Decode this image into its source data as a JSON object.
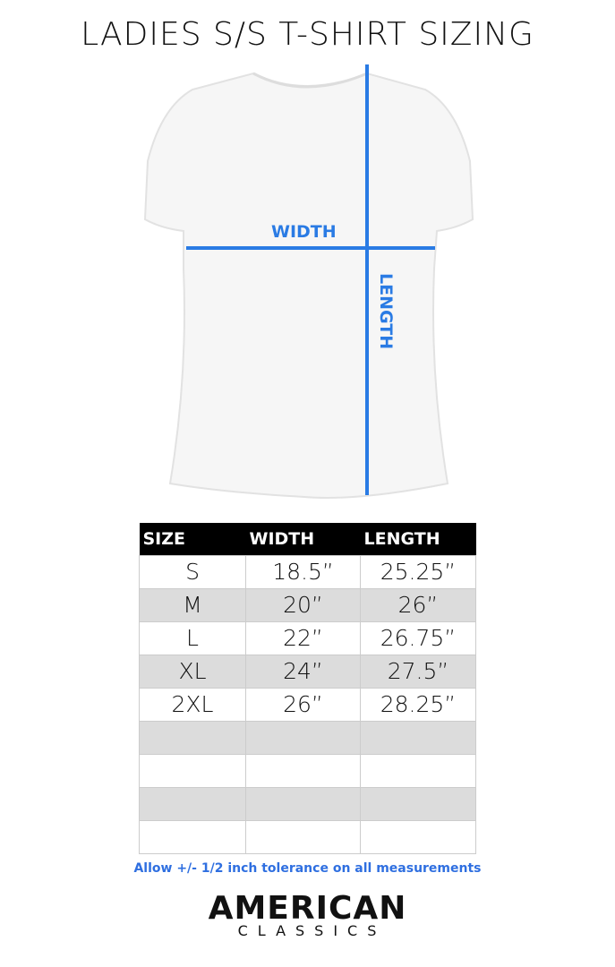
{
  "title": "LADIES S/S T-SHIRT SIZING",
  "diagram": {
    "width_label": "WIDTH",
    "length_label": "LENGTH",
    "accent_color": "#2a7be4"
  },
  "table": {
    "headers": [
      "SIZE",
      "WIDTH",
      "LENGTH"
    ],
    "rows": [
      [
        "S",
        "18.5”",
        "25.25”"
      ],
      [
        "M",
        "20”",
        "26”"
      ],
      [
        "L",
        "22”",
        "26.75”"
      ],
      [
        "XL",
        "24”",
        "27.5”"
      ],
      [
        "2XL",
        "26”",
        "28.25”"
      ],
      [
        "",
        "",
        ""
      ],
      [
        "",
        "",
        ""
      ],
      [
        "",
        "",
        ""
      ],
      [
        "",
        "",
        ""
      ]
    ]
  },
  "note": "Allow +/- 1/2 inch tolerance on all measurements",
  "brand": {
    "line1": "AMERICAN",
    "line2": "CLASSICS"
  }
}
